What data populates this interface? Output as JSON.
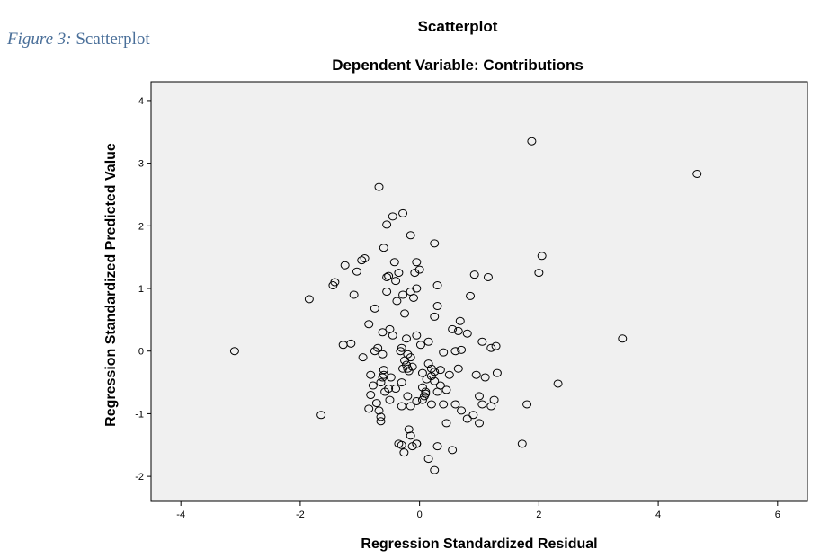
{
  "caption": {
    "label": "Figure 3:",
    "text": "Scatterplot"
  },
  "chart_data": {
    "type": "scatter",
    "title": "Scatterplot",
    "subtitle": "Dependent Variable: Contributions",
    "xlabel": "Regression Standardized Residual",
    "ylabel": "Regression Standardized Predicted Value",
    "xlim": [
      -4.5,
      6.5
    ],
    "ylim": [
      -2.4,
      4.3
    ],
    "xticks": [
      -4,
      -2,
      0,
      2,
      4,
      6
    ],
    "yticks": [
      -2,
      -1,
      0,
      1,
      2,
      3,
      4
    ],
    "grid": false,
    "marker": "open-circle",
    "colors": {
      "plot_bg": "#f0f0f0",
      "frame": "#000000",
      "marker": "#000000",
      "caption": "#4a6f99"
    },
    "points": [
      [
        -3.1,
        0.0
      ],
      [
        -1.65,
        -1.02
      ],
      [
        -1.85,
        0.83
      ],
      [
        -1.45,
        1.05
      ],
      [
        -1.42,
        1.1
      ],
      [
        -1.25,
        1.37
      ],
      [
        -1.15,
        0.12
      ],
      [
        -1.28,
        0.1
      ],
      [
        -1.1,
        0.9
      ],
      [
        -1.05,
        1.27
      ],
      [
        -0.97,
        1.45
      ],
      [
        -0.92,
        1.48
      ],
      [
        -0.95,
        -0.1
      ],
      [
        -0.85,
        -0.92
      ],
      [
        -0.82,
        -0.7
      ],
      [
        -0.82,
        -0.38
      ],
      [
        -0.85,
        0.43
      ],
      [
        -0.75,
        0.68
      ],
      [
        -0.75,
        0.0
      ],
      [
        -0.7,
        0.05
      ],
      [
        -0.72,
        -0.83
      ],
      [
        -0.68,
        -0.95
      ],
      [
        -0.65,
        -1.05
      ],
      [
        -0.65,
        -1.12
      ],
      [
        -0.65,
        -0.5
      ],
      [
        -0.62,
        -0.42
      ],
      [
        -0.62,
        -0.05
      ],
      [
        -0.62,
        0.3
      ],
      [
        -0.68,
        2.62
      ],
      [
        -0.6,
        1.65
      ],
      [
        -0.6,
        -0.38
      ],
      [
        -0.58,
        -0.65
      ],
      [
        -0.55,
        1.18
      ],
      [
        -0.52,
        1.2
      ],
      [
        -0.55,
        0.95
      ],
      [
        -0.5,
        0.35
      ],
      [
        -0.52,
        -0.6
      ],
      [
        -0.5,
        -0.78
      ],
      [
        -0.48,
        -0.42
      ],
      [
        -0.45,
        0.25
      ],
      [
        -0.45,
        2.15
      ],
      [
        -0.42,
        1.42
      ],
      [
        -0.4,
        1.12
      ],
      [
        -0.38,
        0.8
      ],
      [
        -0.35,
        1.25
      ],
      [
        -0.32,
        0.0
      ],
      [
        -0.3,
        0.05
      ],
      [
        -0.28,
        0.9
      ],
      [
        -0.28,
        -0.28
      ],
      [
        -0.3,
        -0.5
      ],
      [
        -0.35,
        -1.48
      ],
      [
        -0.3,
        -1.5
      ],
      [
        -0.26,
        -1.62
      ],
      [
        -0.25,
        -0.15
      ],
      [
        -0.22,
        -0.22
      ],
      [
        -0.2,
        -0.28
      ],
      [
        -0.25,
        0.6
      ],
      [
        -0.22,
        0.2
      ],
      [
        -0.2,
        -0.05
      ],
      [
        -0.18,
        -0.32
      ],
      [
        -0.15,
        -0.1
      ],
      [
        -0.12,
        -0.25
      ],
      [
        -0.15,
        0.95
      ],
      [
        -0.15,
        -0.88
      ],
      [
        -0.18,
        -1.25
      ],
      [
        -0.15,
        -1.35
      ],
      [
        -0.12,
        -1.52
      ],
      [
        -0.05,
        -1.48
      ],
      [
        -0.1,
        0.85
      ],
      [
        -0.08,
        1.25
      ],
      [
        -0.05,
        1.42
      ],
      [
        -0.05,
        1.0
      ],
      [
        -0.05,
        0.25
      ],
      [
        0.0,
        1.3
      ],
      [
        0.02,
        0.1
      ],
      [
        0.05,
        -0.35
      ],
      [
        0.05,
        -0.58
      ],
      [
        0.05,
        -0.78
      ],
      [
        0.08,
        -0.72
      ],
      [
        0.1,
        -0.68
      ],
      [
        0.12,
        -0.45
      ],
      [
        0.15,
        -0.2
      ],
      [
        0.2,
        -0.28
      ],
      [
        0.2,
        -0.4
      ],
      [
        0.25,
        -0.33
      ],
      [
        0.25,
        -0.48
      ],
      [
        0.3,
        -0.65
      ],
      [
        0.25,
        0.55
      ],
      [
        0.3,
        0.72
      ],
      [
        0.3,
        1.05
      ],
      [
        0.25,
        1.72
      ],
      [
        -0.28,
        2.2
      ],
      [
        -0.55,
        2.02
      ],
      [
        -0.15,
        1.85
      ],
      [
        0.35,
        -0.3
      ],
      [
        0.35,
        -0.55
      ],
      [
        0.4,
        -0.85
      ],
      [
        0.45,
        -0.62
      ],
      [
        0.45,
        -1.15
      ],
      [
        0.5,
        -0.38
      ],
      [
        0.55,
        0.35
      ],
      [
        0.6,
        -0.85
      ],
      [
        0.6,
        0.0
      ],
      [
        0.55,
        -1.58
      ],
      [
        0.3,
        -1.52
      ],
      [
        0.25,
        -1.9
      ],
      [
        0.15,
        -1.72
      ],
      [
        -0.05,
        -1.48
      ],
      [
        0.1,
        -0.65
      ],
      [
        0.65,
        -0.28
      ],
      [
        0.7,
        -0.95
      ],
      [
        0.7,
        0.02
      ],
      [
        0.68,
        0.48
      ],
      [
        0.65,
        0.32
      ],
      [
        0.8,
        0.28
      ],
      [
        0.8,
        -1.08
      ],
      [
        0.85,
        0.88
      ],
      [
        0.9,
        -1.02
      ],
      [
        0.92,
        1.22
      ],
      [
        0.95,
        -0.38
      ],
      [
        1.0,
        -1.15
      ],
      [
        1.05,
        0.15
      ],
      [
        1.0,
        -0.72
      ],
      [
        1.05,
        -0.85
      ],
      [
        1.1,
        -0.42
      ],
      [
        1.15,
        1.18
      ],
      [
        1.2,
        0.05
      ],
      [
        1.2,
        -0.88
      ],
      [
        1.25,
        -0.78
      ],
      [
        1.28,
        0.08
      ],
      [
        1.3,
        -0.35
      ],
      [
        1.72,
        -1.48
      ],
      [
        1.8,
        -0.85
      ],
      [
        1.88,
        3.35
      ],
      [
        2.0,
        1.25
      ],
      [
        2.05,
        1.52
      ],
      [
        2.32,
        -0.52
      ],
      [
        3.4,
        0.2
      ],
      [
        4.65,
        2.83
      ],
      [
        -0.3,
        -0.88
      ],
      [
        -0.2,
        -0.72
      ],
      [
        -0.05,
        -0.8
      ],
      [
        0.2,
        -0.85
      ],
      [
        0.4,
        -0.02
      ],
      [
        -0.4,
        -0.6
      ],
      [
        -0.6,
        -0.3
      ],
      [
        -0.78,
        -0.55
      ],
      [
        0.15,
        0.15
      ]
    ]
  }
}
